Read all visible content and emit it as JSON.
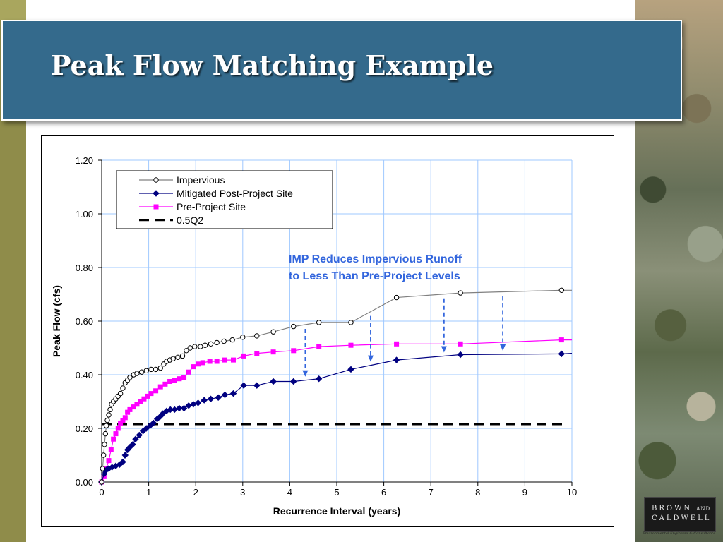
{
  "slide": {
    "title": "Peak Flow Matching Example",
    "logo_line1": "BROWN",
    "logo_and": "AND",
    "logo_line2": "CALDWELL",
    "logo_tagline": "Environmental Engineers & Consultants"
  },
  "chart_data": {
    "type": "line",
    "xlabel": "Recurrence Interval (years)",
    "ylabel": "Peak Flow (cfs)",
    "xlim": [
      0,
      10
    ],
    "ylim": [
      0,
      1.2
    ],
    "xticks": [
      "0",
      "1",
      "2",
      "3",
      "4",
      "5",
      "6",
      "7",
      "8",
      "9",
      "10"
    ],
    "yticks": [
      "0.00",
      "0.20",
      "0.40",
      "0.60",
      "0.80",
      "1.00",
      "1.20"
    ],
    "grid": true,
    "legend_position": "top-left",
    "annotation": [
      "IMP Reduces Impervious Runoff",
      "to Less Than Pre-Project Levels"
    ],
    "annotation_color": "#3366dd",
    "arrows_x": [
      4.33,
      5.72,
      7.28,
      8.53
    ],
    "series": [
      {
        "name": "Impervious",
        "color": "#808080",
        "marker": "circle-open",
        "points": [
          [
            0.0,
            0.0
          ],
          [
            0.02,
            0.05
          ],
          [
            0.04,
            0.1
          ],
          [
            0.06,
            0.14
          ],
          [
            0.08,
            0.18
          ],
          [
            0.1,
            0.21
          ],
          [
            0.12,
            0.23
          ],
          [
            0.15,
            0.25
          ],
          [
            0.18,
            0.27
          ],
          [
            0.21,
            0.29
          ],
          [
            0.25,
            0.3
          ],
          [
            0.3,
            0.31
          ],
          [
            0.35,
            0.32
          ],
          [
            0.4,
            0.33
          ],
          [
            0.45,
            0.35
          ],
          [
            0.5,
            0.37
          ],
          [
            0.55,
            0.38
          ],
          [
            0.6,
            0.39
          ],
          [
            0.68,
            0.4
          ],
          [
            0.75,
            0.405
          ],
          [
            0.85,
            0.41
          ],
          [
            0.95,
            0.415
          ],
          [
            1.05,
            0.42
          ],
          [
            1.15,
            0.42
          ],
          [
            1.25,
            0.425
          ],
          [
            1.32,
            0.44
          ],
          [
            1.38,
            0.45
          ],
          [
            1.45,
            0.455
          ],
          [
            1.52,
            0.46
          ],
          [
            1.62,
            0.465
          ],
          [
            1.72,
            0.47
          ],
          [
            1.8,
            0.49
          ],
          [
            1.88,
            0.5
          ],
          [
            1.98,
            0.505
          ],
          [
            2.1,
            0.505
          ],
          [
            2.2,
            0.51
          ],
          [
            2.32,
            0.515
          ],
          [
            2.45,
            0.52
          ],
          [
            2.6,
            0.525
          ],
          [
            2.78,
            0.53
          ],
          [
            3.0,
            0.54
          ],
          [
            3.3,
            0.545
          ],
          [
            3.65,
            0.56
          ],
          [
            4.08,
            0.58
          ],
          [
            4.62,
            0.595
          ],
          [
            5.3,
            0.595
          ],
          [
            6.27,
            0.688
          ],
          [
            7.63,
            0.705
          ],
          [
            9.78,
            0.715
          ],
          [
            10.0,
            0.715
          ]
        ]
      },
      {
        "name": "Mitigated Post-Project Site",
        "color": "#000080",
        "marker": "diamond",
        "points": [
          [
            0.0,
            0.0
          ],
          [
            0.05,
            0.03
          ],
          [
            0.1,
            0.045
          ],
          [
            0.15,
            0.05
          ],
          [
            0.22,
            0.055
          ],
          [
            0.3,
            0.06
          ],
          [
            0.38,
            0.065
          ],
          [
            0.45,
            0.075
          ],
          [
            0.5,
            0.1
          ],
          [
            0.55,
            0.12
          ],
          [
            0.6,
            0.13
          ],
          [
            0.66,
            0.14
          ],
          [
            0.72,
            0.16
          ],
          [
            0.8,
            0.175
          ],
          [
            0.88,
            0.19
          ],
          [
            0.95,
            0.2
          ],
          [
            1.03,
            0.21
          ],
          [
            1.1,
            0.22
          ],
          [
            1.18,
            0.235
          ],
          [
            1.25,
            0.245
          ],
          [
            1.3,
            0.255
          ],
          [
            1.38,
            0.265
          ],
          [
            1.46,
            0.27
          ],
          [
            1.55,
            0.27
          ],
          [
            1.65,
            0.275
          ],
          [
            1.75,
            0.275
          ],
          [
            1.85,
            0.285
          ],
          [
            1.95,
            0.29
          ],
          [
            2.05,
            0.295
          ],
          [
            2.18,
            0.305
          ],
          [
            2.32,
            0.31
          ],
          [
            2.48,
            0.315
          ],
          [
            2.62,
            0.325
          ],
          [
            2.8,
            0.33
          ],
          [
            3.02,
            0.36
          ],
          [
            3.3,
            0.36
          ],
          [
            3.65,
            0.375
          ],
          [
            4.08,
            0.375
          ],
          [
            4.62,
            0.385
          ],
          [
            5.3,
            0.42
          ],
          [
            6.27,
            0.455
          ],
          [
            7.63,
            0.475
          ],
          [
            9.78,
            0.478
          ],
          [
            10.0,
            0.48
          ]
        ]
      },
      {
        "name": "Pre-Project Site",
        "color": "#ff00ff",
        "marker": "square",
        "points": [
          [
            0.0,
            0.0
          ],
          [
            0.05,
            0.02
          ],
          [
            0.1,
            0.05
          ],
          [
            0.15,
            0.08
          ],
          [
            0.2,
            0.12
          ],
          [
            0.25,
            0.16
          ],
          [
            0.3,
            0.18
          ],
          [
            0.35,
            0.2
          ],
          [
            0.4,
            0.22
          ],
          [
            0.45,
            0.23
          ],
          [
            0.5,
            0.24
          ],
          [
            0.55,
            0.26
          ],
          [
            0.6,
            0.27
          ],
          [
            0.68,
            0.28
          ],
          [
            0.75,
            0.29
          ],
          [
            0.82,
            0.3
          ],
          [
            0.9,
            0.31
          ],
          [
            0.98,
            0.32
          ],
          [
            1.05,
            0.33
          ],
          [
            1.15,
            0.34
          ],
          [
            1.25,
            0.355
          ],
          [
            1.35,
            0.365
          ],
          [
            1.45,
            0.375
          ],
          [
            1.55,
            0.38
          ],
          [
            1.65,
            0.385
          ],
          [
            1.75,
            0.39
          ],
          [
            1.85,
            0.41
          ],
          [
            1.95,
            0.43
          ],
          [
            2.05,
            0.44
          ],
          [
            2.15,
            0.445
          ],
          [
            2.3,
            0.45
          ],
          [
            2.45,
            0.45
          ],
          [
            2.62,
            0.455
          ],
          [
            2.8,
            0.455
          ],
          [
            3.02,
            0.47
          ],
          [
            3.3,
            0.48
          ],
          [
            3.65,
            0.485
          ],
          [
            4.08,
            0.49
          ],
          [
            4.62,
            0.505
          ],
          [
            5.3,
            0.51
          ],
          [
            6.27,
            0.515
          ],
          [
            7.63,
            0.515
          ],
          [
            9.78,
            0.53
          ],
          [
            10.0,
            0.53
          ]
        ]
      },
      {
        "name": "0.5Q2",
        "color": "#000000",
        "style": "dashed",
        "points": [
          [
            0.0,
            0.215
          ],
          [
            10.0,
            0.215
          ]
        ]
      }
    ]
  }
}
